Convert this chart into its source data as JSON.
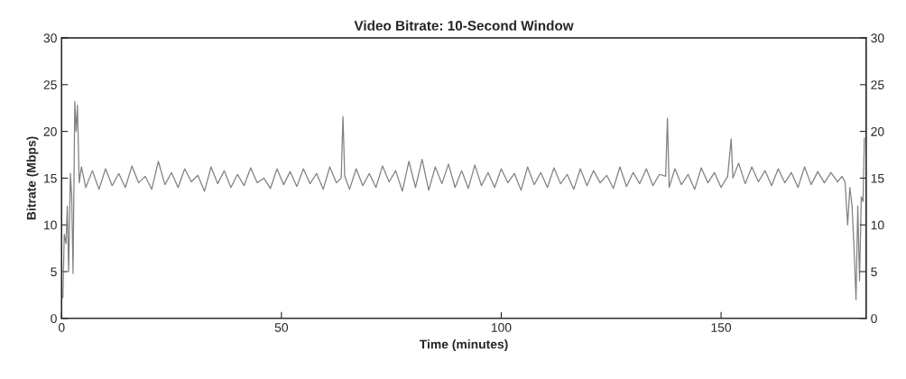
{
  "chart_data": {
    "type": "line",
    "title": "Video Bitrate: 10-Second Window",
    "xlabel": "Time (minutes)",
    "ylabel": "Bitrate (Mbps)",
    "xlim": [
      0,
      183
    ],
    "xticks": [
      0,
      50,
      100,
      150
    ],
    "ylim": [
      0,
      30
    ],
    "yticks": [
      0,
      5,
      10,
      15,
      20,
      25,
      30
    ],
    "y2lim": [
      0,
      30
    ],
    "y2ticks": [
      0,
      5,
      10,
      15,
      20,
      25,
      30
    ],
    "grid": false,
    "legend": false,
    "series": [
      {
        "color": "#808080",
        "x": [
          0.3,
          0.6,
          1.0,
          1.3,
          1.6,
          2.0,
          2.3,
          2.6,
          3.0,
          3.3,
          3.6,
          4.0,
          4.5,
          5.5,
          7,
          8.5,
          10,
          11.5,
          13,
          14.5,
          16,
          17.5,
          19,
          20.5,
          22,
          23.5,
          25,
          26.5,
          28,
          29.5,
          31,
          32.5,
          34,
          35.5,
          37,
          38.5,
          40,
          41.5,
          43,
          44.5,
          46,
          47.5,
          49,
          50.5,
          52,
          53.5,
          55,
          56.5,
          58,
          59.5,
          61,
          62.5,
          63.6,
          64.0,
          64.4,
          65.5,
          67,
          68.5,
          70,
          71.5,
          73,
          74.5,
          76,
          77.5,
          79,
          80.5,
          82,
          83.5,
          85,
          86.5,
          88,
          89.5,
          91,
          92.5,
          94,
          95.5,
          97,
          98.5,
          100,
          101.5,
          103,
          104.5,
          106,
          107.5,
          109,
          110.5,
          112,
          113.5,
          115,
          116.5,
          118,
          119.5,
          121,
          122.5,
          124,
          125.5,
          127,
          128.5,
          130,
          131.5,
          133,
          134.5,
          136,
          137.4,
          137.8,
          138.2,
          139.5,
          141,
          142.5,
          144,
          145.5,
          147,
          148.5,
          150,
          151.5,
          152.3,
          152.7,
          154,
          155.5,
          157,
          158.5,
          160,
          161.5,
          163,
          164.5,
          166,
          167.5,
          169,
          170.5,
          172,
          173.5,
          175,
          176.5,
          177.5,
          178.2,
          178.8,
          179.3,
          179.8,
          180.3,
          180.7,
          181.1,
          181.5,
          181.9,
          182.3,
          182.6
        ],
        "values": [
          2.2,
          9.0,
          8.0,
          12.0,
          5.0,
          15.5,
          13.0,
          4.8,
          23.2,
          20.0,
          22.8,
          14.5,
          16.2,
          14.0,
          15.8,
          13.8,
          16.0,
          14.2,
          15.5,
          14.0,
          16.3,
          14.5,
          15.2,
          13.8,
          16.8,
          14.3,
          15.6,
          14.0,
          16.0,
          14.6,
          15.3,
          13.6,
          16.2,
          14.4,
          15.8,
          14.0,
          15.4,
          14.2,
          16.1,
          14.5,
          15.0,
          13.9,
          16.0,
          14.3,
          15.7,
          14.1,
          16.0,
          14.4,
          15.5,
          13.8,
          16.2,
          14.5,
          15.0,
          21.6,
          15.2,
          13.8,
          16.0,
          14.2,
          15.5,
          14.0,
          16.3,
          14.6,
          15.8,
          13.6,
          16.8,
          14.0,
          17.0,
          13.7,
          16.2,
          14.4,
          16.5,
          14.0,
          15.8,
          13.9,
          16.4,
          14.2,
          15.6,
          14.0,
          16.0,
          14.5,
          15.5,
          13.7,
          16.2,
          14.3,
          15.6,
          14.0,
          16.1,
          14.4,
          15.4,
          13.8,
          16.0,
          14.2,
          15.8,
          14.5,
          15.3,
          13.9,
          16.2,
          14.1,
          15.6,
          14.4,
          16.0,
          14.2,
          15.4,
          15.2,
          21.4,
          14.0,
          16.0,
          14.3,
          15.4,
          13.8,
          16.1,
          14.5,
          15.6,
          14.0,
          15.2,
          19.2,
          15.0,
          16.6,
          14.4,
          16.2,
          14.6,
          15.8,
          14.2,
          16.0,
          14.5,
          15.6,
          14.0,
          16.2,
          14.3,
          15.7,
          14.5,
          15.6,
          14.6,
          15.2,
          14.6,
          10.0,
          14.0,
          12.0,
          7.0,
          2.0,
          12.0,
          4.0,
          13.0,
          12.5,
          19.3
        ]
      }
    ]
  }
}
